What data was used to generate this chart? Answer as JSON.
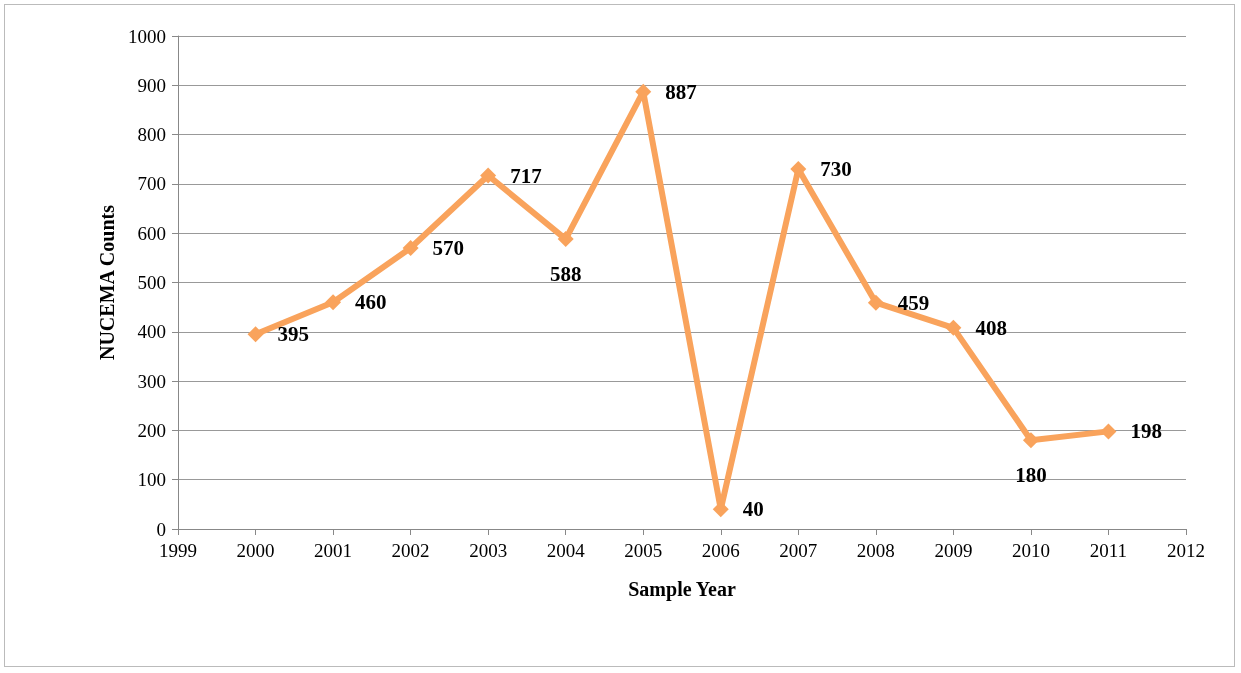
{
  "chart_data": {
    "type": "line",
    "xlabel": "Sample Year",
    "ylabel": "NUCEMA Counts",
    "x": [
      2000,
      2001,
      2002,
      2003,
      2004,
      2005,
      2006,
      2007,
      2008,
      2009,
      2010,
      2011
    ],
    "series": [
      {
        "color": "#f9a35c",
        "values": [
          395,
          460,
          570,
          717,
          588,
          887,
          40,
          730,
          459,
          408,
          180,
          198
        ]
      }
    ],
    "xlim": [
      1999,
      2012
    ],
    "xticks": [
      1999,
      2000,
      2001,
      2002,
      2003,
      2004,
      2005,
      2006,
      2007,
      2008,
      2009,
      2010,
      2011,
      2012
    ],
    "ylim": [
      0,
      1000
    ],
    "yticks": [
      0,
      100,
      200,
      300,
      400,
      500,
      600,
      700,
      800,
      900,
      1000
    ],
    "grid": "y",
    "marker": "diamond",
    "line_style": "solid",
    "data_labels": true
  }
}
